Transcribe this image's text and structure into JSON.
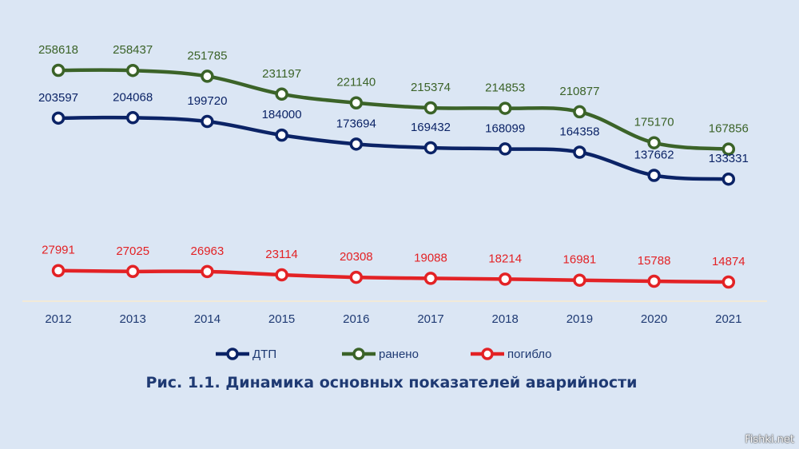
{
  "chart_data": {
    "type": "line",
    "title": "Рис. 1.1.  Динамика основных показателей аварийности",
    "categories": [
      "2012",
      "2013",
      "2014",
      "2015",
      "2016",
      "2017",
      "2018",
      "2019",
      "2020",
      "2021"
    ],
    "series": [
      {
        "name": "ДТП",
        "color": "#0b2366",
        "values": [
          203597,
          204068,
          199720,
          184000,
          173694,
          169432,
          168099,
          164358,
          137662,
          133331
        ]
      },
      {
        "name": "ранено",
        "color": "#3b6328",
        "values": [
          258618,
          258437,
          251785,
          231197,
          221140,
          215374,
          214853,
          210877,
          175170,
          167856
        ]
      },
      {
        "name": "погибло",
        "color": "#e32225",
        "values": [
          27991,
          27025,
          26963,
          23114,
          20308,
          19088,
          18214,
          16981,
          15788,
          14874
        ]
      }
    ],
    "colors": {
      "title": "#1f3a73",
      "axis_label": "#1f3a73",
      "axis_line": "#f2ead8"
    },
    "grid": false,
    "legend_position": "bottom-center"
  },
  "watermark": "Fishki.net"
}
